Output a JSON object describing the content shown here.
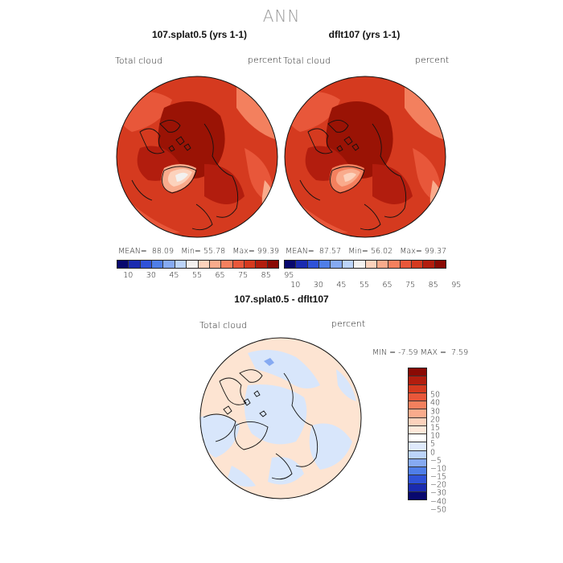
{
  "title": "ANN",
  "panels": [
    {
      "title": "107.splat0.5 (yrs 1-1)",
      "variable": "Total cloud",
      "units": "percent",
      "mean_label": "MEAN=",
      "mean": "88.09",
      "min_label": "Min=",
      "min": "55.78",
      "max_label": "Max=",
      "max": "99.39"
    },
    {
      "title": "dflt107 (yrs 1-1)",
      "variable": "Total cloud",
      "units": "percent",
      "mean_label": "MEAN=",
      "mean": "87.57",
      "min_label": "Min=",
      "min": "56.02",
      "max_label": "Max=",
      "max": "99.37"
    }
  ],
  "abs_colorbar": {
    "labels": [
      "10",
      "30",
      "45",
      "55",
      "65",
      "75",
      "85",
      "95"
    ],
    "colors": [
      "#08086e",
      "#1a2bb0",
      "#2f52d8",
      "#4f7ee8",
      "#86aaf2",
      "#bcd4fa",
      "#f3f1ef",
      "#fcd2bc",
      "#f9ab8c",
      "#f3805e",
      "#e8573a",
      "#d53a1f",
      "#b21d0e",
      "#8a0a04"
    ]
  },
  "diff_panel": {
    "title": "107.splat0.5 - dflt107",
    "variable": "Total cloud",
    "units": "percent",
    "min_label": "MIN =",
    "min": "-7.59",
    "max_label": "MAX =",
    "max": "7.59"
  },
  "diff_colorbar": {
    "labels": [
      "50",
      "40",
      "30",
      "20",
      "15",
      "10",
      "5",
      "0",
      "−5",
      "−10",
      "−15",
      "−20",
      "−30",
      "−40",
      "−50"
    ],
    "colors": [
      "#8a0a04",
      "#b21d0e",
      "#d53a1f",
      "#e8573a",
      "#f3805e",
      "#f9ab8c",
      "#fcd2bc",
      "#fde8da",
      "#ffffff",
      "#dfeafc",
      "#bcd4fa",
      "#86aaf2",
      "#4f7ee8",
      "#2f52d8",
      "#1a2bb0",
      "#08086e"
    ]
  },
  "colors": {
    "map_dark_red": "#9a1305",
    "map_red": "#c8301a",
    "map_orange": "#e0572f",
    "map_light": "#f5a07a",
    "diff_peach": "#fde4d2",
    "diff_blue": "#d8e6fb"
  }
}
